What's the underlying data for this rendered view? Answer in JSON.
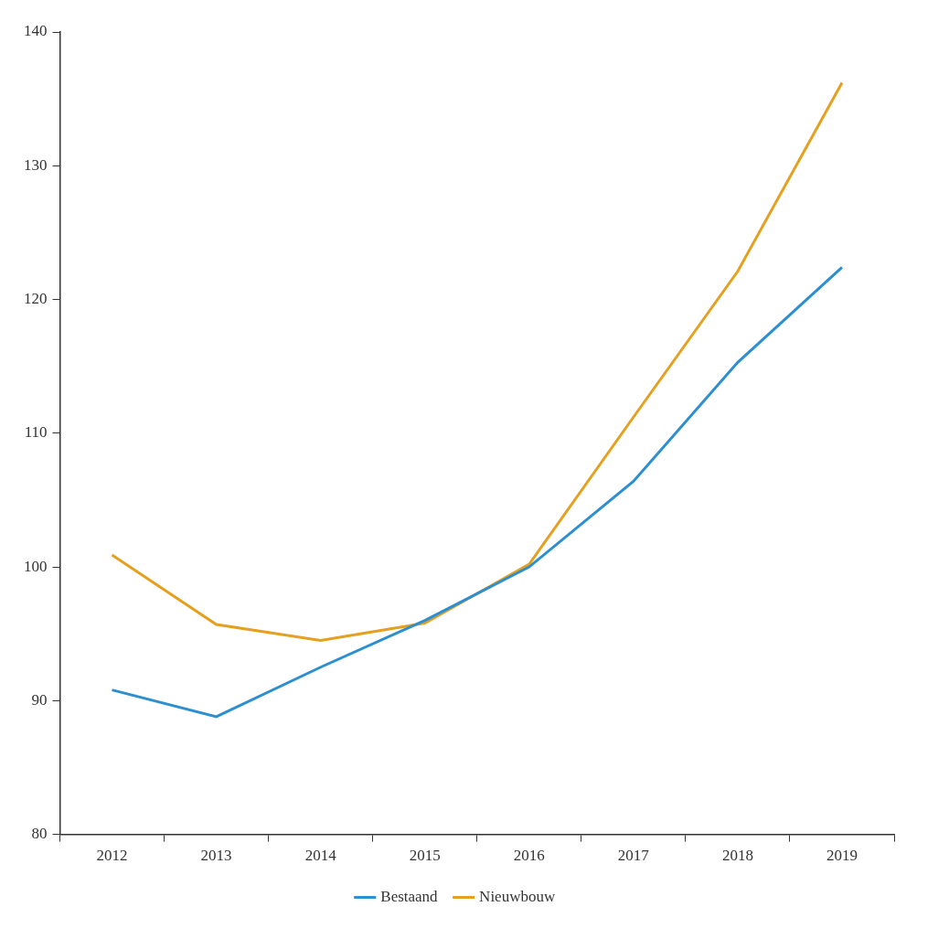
{
  "chart_data": {
    "type": "line",
    "categories": [
      "2012",
      "2013",
      "2014",
      "2015",
      "2016",
      "2017",
      "2018",
      "2019"
    ],
    "series": [
      {
        "name": "Bestaand",
        "color": "#2b8fd1",
        "values": [
          90.8,
          88.8,
          92.5,
          96.0,
          100.0,
          106.4,
          115.3,
          122.4
        ]
      },
      {
        "name": "Nieuwbouw",
        "color": "#e6a020",
        "values": [
          100.9,
          95.7,
          94.5,
          95.8,
          100.2,
          111.2,
          122.1,
          136.2
        ]
      }
    ],
    "ylim": [
      80,
      140
    ],
    "yticks": [
      80,
      90,
      100,
      110,
      120,
      130,
      140
    ],
    "grid": false,
    "legend": "bottom"
  }
}
